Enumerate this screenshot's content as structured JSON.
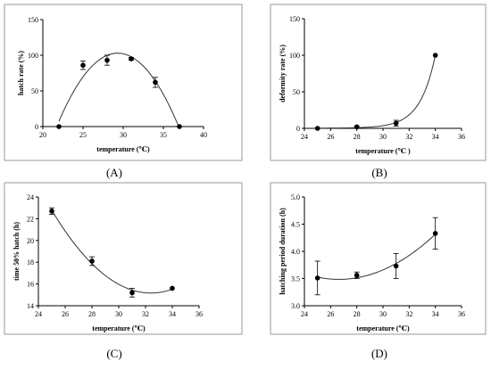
{
  "chart_data": [
    {
      "type": "scatter",
      "panel_label": "(A)",
      "xlabel": "temperature (℃)",
      "ylabel": "hatch rate (%)",
      "xlim": [
        20,
        40
      ],
      "ylim": [
        0,
        150
      ],
      "xticks": [
        "20",
        "25",
        "30",
        "35",
        "40"
      ],
      "yticks": [
        "0",
        "50",
        "100",
        "150"
      ],
      "points": [
        {
          "x": 22,
          "y": 0,
          "err": 0
        },
        {
          "x": 25,
          "y": 86,
          "err": 6
        },
        {
          "x": 28,
          "y": 93,
          "err": 7
        },
        {
          "x": 31,
          "y": 95,
          "err": 2
        },
        {
          "x": 34,
          "y": 62,
          "err": 7
        },
        {
          "x": 37,
          "y": 0,
          "err": 0
        }
      ],
      "fit": "quadratic",
      "fit_range": [
        22,
        37
      ],
      "grid": false
    },
    {
      "type": "scatter",
      "panel_label": "(B)",
      "xlabel": "temperature (℃ )",
      "ylabel": "deformity rate (%)",
      "xlim": [
        24,
        36
      ],
      "ylim": [
        0,
        150
      ],
      "xticks": [
        "24",
        "26",
        "28",
        "30",
        "32",
        "34",
        "36"
      ],
      "yticks": [
        "0",
        "50",
        "100",
        "150"
      ],
      "points": [
        {
          "x": 25,
          "y": 0,
          "err": 0
        },
        {
          "x": 28,
          "y": 2,
          "err": 1
        },
        {
          "x": 31,
          "y": 7,
          "err": 4
        },
        {
          "x": 34,
          "y": 100,
          "err": 0
        }
      ],
      "fit": "exponential",
      "fit_range": [
        25,
        34
      ],
      "grid": false
    },
    {
      "type": "scatter",
      "panel_label": "(C)",
      "xlabel": "temperature (℃)",
      "ylabel": "time 50% hatch (h)",
      "xlim": [
        24,
        36
      ],
      "ylim": [
        14,
        24
      ],
      "xticks": [
        "24",
        "26",
        "28",
        "30",
        "32",
        "34",
        "36"
      ],
      "yticks": [
        "14",
        "16",
        "18",
        "20",
        "22",
        "24"
      ],
      "points": [
        {
          "x": 25,
          "y": 22.7,
          "err": 0.3
        },
        {
          "x": 28,
          "y": 18.1,
          "err": 0.4
        },
        {
          "x": 31,
          "y": 15.2,
          "err": 0.4
        },
        {
          "x": 34,
          "y": 15.6,
          "err": 0
        }
      ],
      "fit": "quadratic",
      "fit_range": [
        25,
        34
      ],
      "grid": false
    },
    {
      "type": "scatter",
      "panel_label": "(D)",
      "xlabel": "temperature (℃)",
      "ylabel": "hatching period duration (h)",
      "xlim": [
        24,
        36
      ],
      "ylim": [
        3.0,
        5.0
      ],
      "xticks": [
        "24",
        "26",
        "28",
        "30",
        "32",
        "34",
        "36"
      ],
      "yticks": [
        "3.0",
        "3.5",
        "4.0",
        "4.5",
        "5.0"
      ],
      "points": [
        {
          "x": 25,
          "y": 3.51,
          "err": 0.31
        },
        {
          "x": 28,
          "y": 3.56,
          "err": 0.06
        },
        {
          "x": 31,
          "y": 3.73,
          "err": 0.23
        },
        {
          "x": 34,
          "y": 4.33,
          "err": 0.29
        }
      ],
      "fit": "quadratic",
      "fit_range": [
        25,
        34
      ],
      "grid": false
    }
  ]
}
